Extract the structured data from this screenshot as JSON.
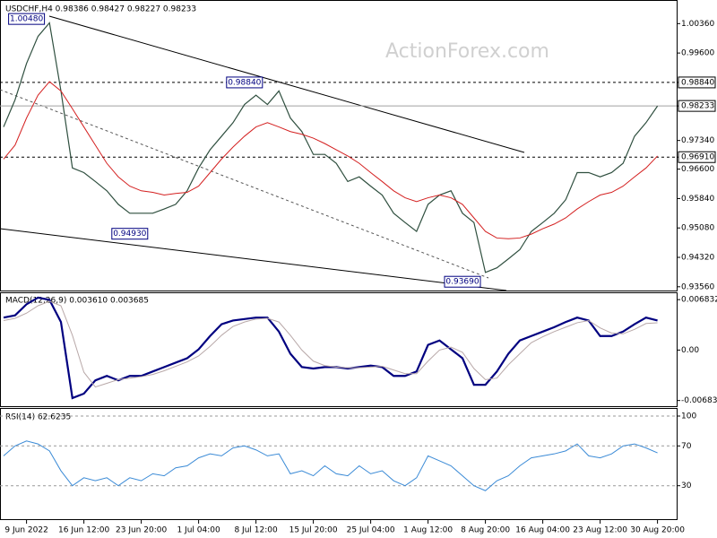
{
  "chart_data": [
    {
      "type": "line",
      "title": "USDCHF,H4  0.98386 0.98427 0.98227 0.98233",
      "watermark": "ActionForex.com",
      "ylim": [
        0.9344,
        1.0097
      ],
      "yticks": [
        {
          "value": 1.0036,
          "label": "1.00360"
        },
        {
          "value": 0.996,
          "label": "0.99600"
        },
        {
          "value": 0.9884,
          "label": "0.98840",
          "style": "level"
        },
        {
          "value": 0.98233,
          "label": "0.98233",
          "style": "current"
        },
        {
          "value": 0.9734,
          "label": "0.97340"
        },
        {
          "value": 0.9691,
          "label": "0.96910",
          "style": "level"
        },
        {
          "value": 0.966,
          "label": "0.96600"
        },
        {
          "value": 0.9584,
          "label": "0.95840"
        },
        {
          "value": 0.9508,
          "label": "0.95080"
        },
        {
          "value": 0.9432,
          "label": "0.94320"
        },
        {
          "value": 0.9356,
          "label": "0.93560"
        }
      ],
      "grid": false,
      "annotations": [
        {
          "label": "1.00480",
          "value": 1.0048,
          "index": 2
        },
        {
          "label": "0.98840",
          "value": 0.9884,
          "index": 21
        },
        {
          "label": "0.94930",
          "value": 0.9493,
          "index": 11
        },
        {
          "label": "0.93690",
          "value": 0.9369,
          "index": 40
        }
      ],
      "series": [
        {
          "color": "#2f4f3f",
          "width": 1.2,
          "values": [
            0.9769,
            0.9839,
            0.9933,
            1.0003,
            1.0038,
            0.9862,
            0.9663,
            0.9651,
            0.9628,
            0.9604,
            0.9569,
            0.9546,
            0.9546,
            0.9546,
            0.9557,
            0.9569,
            0.9604,
            0.9663,
            0.971,
            0.9745,
            0.978,
            0.9827,
            0.9851,
            0.9827,
            0.9862,
            0.9792,
            0.9757,
            0.9698,
            0.9698,
            0.9675,
            0.9628,
            0.964,
            0.9616,
            0.9593,
            0.9546,
            0.9522,
            0.9499,
            0.9569,
            0.9593,
            0.9604,
            0.9546,
            0.9522,
            0.9393,
            0.9405,
            0.9428,
            0.9452,
            0.9499,
            0.9522,
            0.9546,
            0.9581,
            0.9651,
            0.9651,
            0.964,
            0.9651,
            0.9675,
            0.9745,
            0.978,
            0.9823
          ]
        },
        {
          "color": "#d42020",
          "width": 1,
          "values": [
            0.9686,
            0.9722,
            0.9792,
            0.9851,
            0.9886,
            0.9862,
            0.9816,
            0.9769,
            0.9722,
            0.9675,
            0.964,
            0.9616,
            0.9604,
            0.96,
            0.9593,
            0.9597,
            0.96,
            0.9616,
            0.9651,
            0.9686,
            0.9717,
            0.9745,
            0.9769,
            0.978,
            0.9769,
            0.9757,
            0.975,
            0.974,
            0.9726,
            0.971,
            0.9694,
            0.9675,
            0.9651,
            0.9628,
            0.9604,
            0.9586,
            0.9576,
            0.9586,
            0.9593,
            0.9586,
            0.9569,
            0.9534,
            0.9499,
            0.9482,
            0.948,
            0.9482,
            0.9492,
            0.9506,
            0.9518,
            0.9534,
            0.9557,
            0.9576,
            0.9593,
            0.96,
            0.9616,
            0.964,
            0.9663,
            0.9694
          ]
        }
      ]
    },
    {
      "type": "line",
      "title": "MACD(12,26,9) 0.003610 0.003685",
      "ylim": [
        -0.0076,
        0.0077
      ],
      "yticks": [
        0.006832,
        {
          "value": 0,
          "label": "0.00"
        },
        -0.00683
      ],
      "grid": false,
      "series": [
        {
          "color": "#000080",
          "width": 2.2,
          "values": [
            0.0044,
            0.0047,
            0.0062,
            0.0071,
            0.0068,
            0.0038,
            -0.0065,
            -0.0059,
            -0.0041,
            -0.0035,
            -0.0041,
            -0.0035,
            -0.0035,
            -0.0029,
            -0.0023,
            -0.0017,
            -0.0011,
            0.0001,
            0.0019,
            0.0035,
            0.004,
            0.0042,
            0.0044,
            0.0044,
            0.0025,
            -0.0005,
            -0.0023,
            -0.0025,
            -0.0023,
            -0.0023,
            -0.0025,
            -0.0023,
            -0.0021,
            -0.0023,
            -0.0035,
            -0.0035,
            -0.0029,
            0.0007,
            0.0013,
            0.0001,
            -0.0011,
            -0.0047,
            -0.0047,
            -0.0029,
            -0.0005,
            0.0013,
            0.0019,
            0.0025,
            0.0031,
            0.0038,
            0.0044,
            0.004,
            0.0019,
            0.0019,
            0.0025,
            0.0035,
            0.0044,
            0.004
          ]
        },
        {
          "color": "#b8a8a8",
          "width": 1,
          "values": [
            0.004,
            0.0043,
            0.005,
            0.006,
            0.0066,
            0.006,
            0.002,
            -0.003,
            -0.005,
            -0.0045,
            -0.004,
            -0.0038,
            -0.0036,
            -0.0033,
            -0.0028,
            -0.0022,
            -0.0016,
            -0.0008,
            0.0005,
            0.002,
            0.0032,
            0.0038,
            0.0042,
            0.0043,
            0.0038,
            0.002,
            0.0,
            -0.0015,
            -0.0021,
            -0.0023,
            -0.0024,
            -0.0024,
            -0.0023,
            -0.0022,
            -0.0027,
            -0.0032,
            -0.0032,
            -0.0015,
            0.0,
            0.0004,
            -0.0003,
            -0.0025,
            -0.004,
            -0.0038,
            -0.002,
            -0.0005,
            0.001,
            0.0018,
            0.0025,
            0.0031,
            0.0037,
            0.004,
            0.003,
            0.0023,
            0.0022,
            0.0028,
            0.0036,
            0.0037
          ]
        }
      ]
    },
    {
      "type": "line",
      "title": "RSI(14) 62.6235",
      "ylim": [
        0,
        100
      ],
      "yticks": [
        100,
        70,
        30
      ],
      "grid": true,
      "categories": [
        null,
        null,
        "9 Jun 2022",
        null,
        null,
        null,
        null,
        "16 Jun 12:00",
        null,
        null,
        null,
        null,
        "23 Jun 20:00",
        null,
        null,
        null,
        null,
        "1 Jul 04:00",
        null,
        null,
        null,
        null,
        "8 Jul 12:00",
        null,
        null,
        null,
        null,
        "15 Jul 20:00",
        null,
        null,
        null,
        null,
        "25 Jul 04:00",
        null,
        null,
        null,
        null,
        "1 Aug 12:00",
        null,
        null,
        null,
        null,
        "8 Aug 20:00",
        null,
        null,
        null,
        null,
        "16 Aug 04:00",
        null,
        null,
        null,
        null,
        "23 Aug 12:00",
        null,
        null,
        null,
        null,
        "30 Aug 20:00"
      ],
      "series": [
        {
          "color": "#3a8ad6",
          "width": 1,
          "values": [
            60,
            70,
            75,
            72,
            65,
            45,
            30,
            38,
            35,
            38,
            30,
            38,
            35,
            42,
            40,
            48,
            50,
            58,
            62,
            60,
            68,
            70,
            66,
            60,
            62,
            42,
            45,
            40,
            50,
            42,
            40,
            50,
            42,
            45,
            35,
            30,
            38,
            60,
            55,
            50,
            40,
            30,
            25,
            35,
            40,
            50,
            58,
            60,
            62,
            65,
            72,
            60,
            58,
            62,
            70,
            72,
            68,
            63
          ]
        }
      ]
    }
  ]
}
